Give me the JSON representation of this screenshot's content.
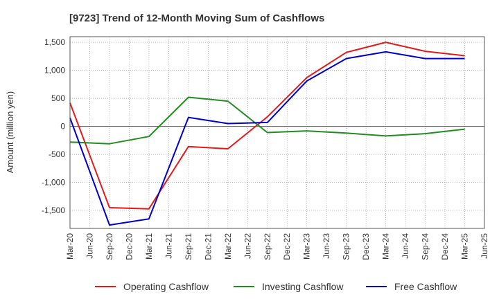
{
  "chart_data": {
    "type": "line",
    "title": "[9723]  Trend of 12-Month Moving Sum of Cashflows",
    "ylabel": "Amount (million yen)",
    "xlabel": "",
    "x_ticks": [
      "Mar-20",
      "Jun-20",
      "Sep-20",
      "Dec-20",
      "Mar-21",
      "Jun-21",
      "Sep-21",
      "Dec-21",
      "Mar-22",
      "Jun-22",
      "Sep-22",
      "Dec-22",
      "Mar-23",
      "Jun-23",
      "Sep-23",
      "Dec-23",
      "Mar-24",
      "Jun-24",
      "Sep-24",
      "Dec-24",
      "Mar-25",
      "Jun-25"
    ],
    "y_ticks": [
      1500,
      1000,
      500,
      0,
      -500,
      -1000,
      -1500
    ],
    "y_tick_labels": [
      "1,500",
      "1,000",
      "500",
      "0",
      "-500",
      "-1,000",
      "-1,500"
    ],
    "ylim": [
      -1820,
      1600
    ],
    "grid": true,
    "legend_position": "bottom",
    "series": [
      {
        "name": "Operating Cashflow",
        "color": "#e31a1c",
        "points": [
          [
            "Mar-20",
            420
          ],
          [
            "Sep-20",
            -1450
          ],
          [
            "Mar-21",
            -1470
          ],
          [
            "Sep-21",
            -360
          ],
          [
            "Mar-22",
            -400
          ],
          [
            "Sep-22",
            170
          ],
          [
            "Mar-23",
            870
          ],
          [
            "Sep-23",
            1320
          ],
          [
            "Mar-24",
            1500
          ],
          [
            "Sep-24",
            1340
          ],
          [
            "Mar-25",
            1260
          ]
        ]
      },
      {
        "name": "Investing Cashflow",
        "color": "#228b22",
        "points": [
          [
            "Mar-20",
            -280
          ],
          [
            "Sep-20",
            -310
          ],
          [
            "Mar-21",
            -180
          ],
          [
            "Sep-21",
            520
          ],
          [
            "Mar-22",
            450
          ],
          [
            "Sep-22",
            -110
          ],
          [
            "Mar-23",
            -80
          ],
          [
            "Sep-23",
            -120
          ],
          [
            "Mar-24",
            -170
          ],
          [
            "Sep-24",
            -130
          ],
          [
            "Mar-25",
            -50
          ]
        ]
      },
      {
        "name": "Free Cashflow",
        "color": "#0000cc",
        "points": [
          [
            "Mar-20",
            150
          ],
          [
            "Sep-20",
            -1760
          ],
          [
            "Mar-21",
            -1650
          ],
          [
            "Sep-21",
            160
          ],
          [
            "Mar-22",
            50
          ],
          [
            "Sep-22",
            70
          ],
          [
            "Mar-23",
            810
          ],
          [
            "Sep-23",
            1210
          ],
          [
            "Mar-24",
            1330
          ],
          [
            "Sep-24",
            1210
          ],
          [
            "Mar-25",
            1210
          ]
        ]
      }
    ]
  }
}
